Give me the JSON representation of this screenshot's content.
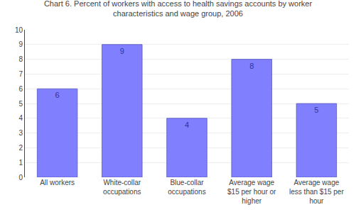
{
  "chart_data": {
    "type": "bar",
    "title": "Chart 6. Percent of workers with access to health savings accounts by worker\ncharacteristics and wage group, 2006",
    "categories": [
      "All workers",
      "White-collar\noccupations",
      "Blue-collar\noccupations",
      "Average wage\n$15 per hour or\nhigher",
      "Average wage\nless than $15 per\nhour"
    ],
    "values": [
      6,
      9,
      4,
      8,
      5
    ],
    "color": "#8080ff",
    "ylim": [
      0,
      10
    ],
    "yticks": [
      0,
      1,
      2,
      3,
      4,
      5,
      6,
      7,
      8,
      9,
      10
    ],
    "grid": true,
    "data_labels": true
  }
}
